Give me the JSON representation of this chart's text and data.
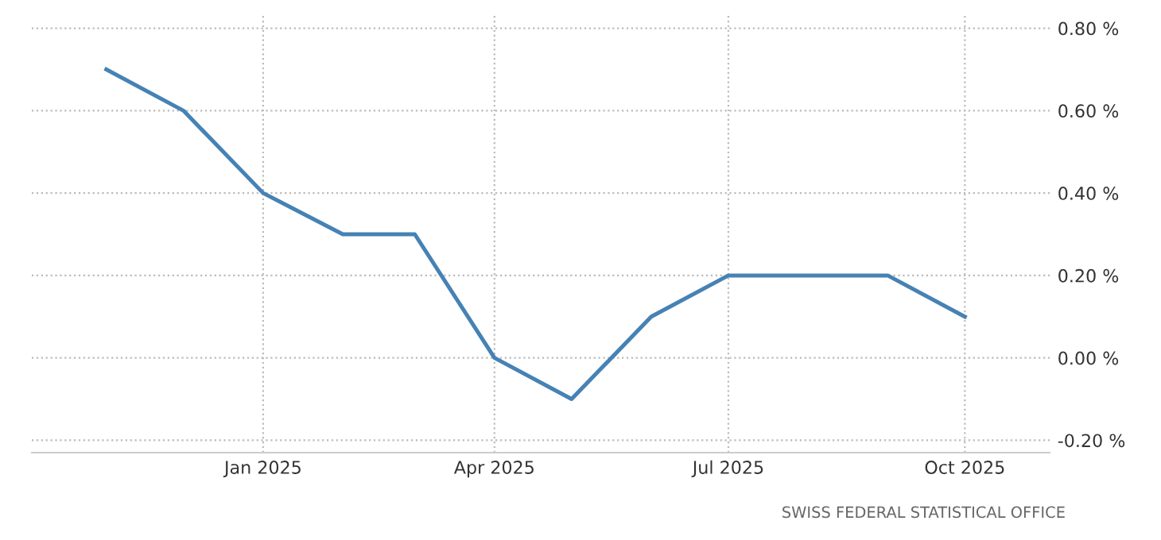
{
  "chart_data": {
    "type": "line",
    "x": [
      "2024-11-01",
      "2024-12-01",
      "2025-01-01",
      "2025-02-01",
      "2025-03-01",
      "2025-04-01",
      "2025-05-01",
      "2025-06-01",
      "2025-07-01",
      "2025-08-01",
      "2025-09-01",
      "2025-10-01"
    ],
    "series": [
      {
        "color": "#4682b4",
        "values": [
          0.7,
          0.6,
          0.4,
          0.3,
          0.3,
          0.0,
          -0.1,
          0.1,
          0.2,
          0.2,
          0.2,
          0.1
        ]
      }
    ],
    "xlim": [
      "2024-10-03",
      "2025-11-03"
    ],
    "xticks": [
      {
        "value": "2025-01-01",
        "label": "Jan 2025"
      },
      {
        "value": "2025-04-01",
        "label": "Apr 2025"
      },
      {
        "value": "2025-07-01",
        "label": "Jul 2025"
      },
      {
        "value": "2025-10-01",
        "label": "Oct 2025"
      }
    ],
    "ylim": [
      -0.23,
      0.83
    ],
    "yticks": [
      {
        "value": -0.2,
        "label": "-0.20 %"
      },
      {
        "value": 0.0,
        "label": "0.00 %"
      },
      {
        "value": 0.2,
        "label": "0.20 %"
      },
      {
        "value": 0.4,
        "label": "0.40 %"
      },
      {
        "value": 0.6,
        "label": "0.60 %"
      },
      {
        "value": 0.8,
        "label": "0.80 %"
      }
    ],
    "grid": true,
    "marker": "none",
    "line_style": "solid",
    "annotations": [
      "SWISS FEDERAL STATISTICAL OFFICE"
    ]
  }
}
